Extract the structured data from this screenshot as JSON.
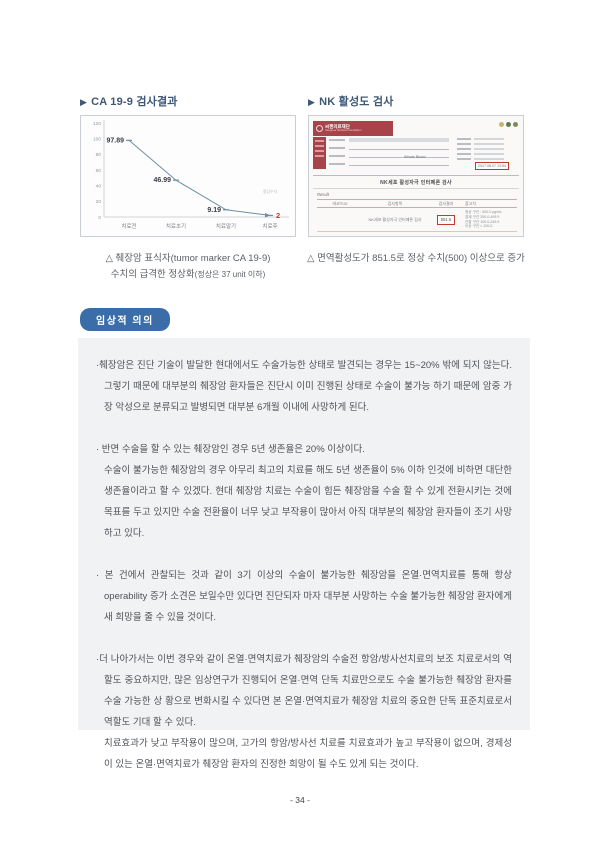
{
  "left_section": {
    "marker": "▶",
    "header": "CA 19-9 검사결과",
    "caption_line1": "△ 췌장암 표식자(tumor marker CA 19-9)",
    "caption_line2_main": "수치의 급격한 정상화",
    "caption_line2_small": "(정상은 37 unit 이하)"
  },
  "right_section": {
    "marker": "▶",
    "header": "NK 활성도 검사",
    "caption": "△ 면역활성도가 851.5로 정상 수치(500) 이상으로 증가"
  },
  "chart_data": {
    "type": "line",
    "title": "CA 19-9 검사결과",
    "categories": [
      "치료전",
      "치료초기",
      "치료말기",
      "치료후"
    ],
    "values": [
      97.89,
      46.99,
      9.19,
      2
    ],
    "labels": [
      "97.89",
      "46.99",
      "9.19",
      "2"
    ],
    "ylim": [
      0,
      120
    ],
    "yticks": [
      0,
      20,
      40,
      60,
      80,
      100,
      120
    ],
    "annotation": "정상수치",
    "line_color": "#6b8fa3",
    "label_color": "#3a3d42",
    "last_label_color": "#c0392b",
    "grid": false,
    "legend": false
  },
  "report": {
    "foundation_kr": "씨젠의료재단",
    "foundation_en": "Seegene Medical Foundation",
    "specimen": "Whole Blood",
    "date_boxed": "2017.08.07 13:54",
    "title": "NK세포 활성자극 인터페론 검사",
    "result_label": "Result",
    "table": {
      "headers": [
        "바코드ID",
        "검사항목",
        "검사결과",
        "참고치"
      ],
      "row": {
        "item": "NK세포 활성자극 인터페론 검사",
        "result": "851.5",
        "reference": [
          "정상 구간 : 500.0 pg/mL",
          "경계 구간 250.0-499.9",
          "관찰 구간 100.0-249.9",
          "이상 구간 < 100.0"
        ]
      }
    }
  },
  "badge": {
    "label": "임상적 의의"
  },
  "clinical": {
    "paragraphs": [
      "·췌장암은 진단 기술이 발달한 현대에서도 수술가능한 상태로 발견되는 경우는 15~20% 밖에 되지 않는다. 그렇기 때문에 대부분의 췌장암 환자들은 진단시 이미 진행된 상태로 수술이 불가능 하기 때문에 암중 가장 악성으로 분류되고 발병되면 대부분 6개월 이내에 사망하게 된다.",
      "· 반면 수술을 할 수 있는 췌장암인 경우 5년 생존율은 20% 이상이다.\n수술이 불가능한 췌장암의 경우 아무리 최고의 치료를 해도 5년 생존율이 5% 이하 인것에 비하면 대단한 생존율이라고 할 수 있겠다. 현대 췌장암 치료는 수술이 힘든 췌장암을 수술 할 수 있게 전환시키는 것에 목표를 두고 있지만 수술 전환율이 너무 낮고 부작용이 많아서 아직 대부분의 췌장암 환자들이 조기 사망하고 있다.",
      "· 본 건에서 관찰되는 것과 같이 3기 이상의 수술이 불가능한 췌장암을 온열·면역치료를 통해 항상 operability 증가 소견은 보일수만 있다면 진단되자 마자 대부분 사망하는 수술 불가능한 췌장암 환자에게 새 희망을 줄 수 있을 것이다.",
      "·더 나아가서는 이번 경우와 같이 온열·면역치료가 췌장암의 수술전 항암/방사선치료의 보조 치료로서의 역할도 중요하지만, 많은 임상연구가 진행되어 온열·면역 단독 치료만으로도 수술 불가능한 췌장암 환자를 수술 가능한 상 황으로 변화시킬 수 있다면 본 온열·면역치료가 췌장암 치료의 중요한 단독  표준치료로서 역할도 기대 할 수 있다.\n치료효과가 낮고 부작용이 많으며, 고가의 항암/방사선 치료를 치료효과가 높고 부작용이 없으며, 경제성이 있는 온열·면역치료가 췌장암 환자의 진정한 희망이 될 수도 있게 되는 것이다."
    ]
  },
  "page_number": "- 34 -"
}
